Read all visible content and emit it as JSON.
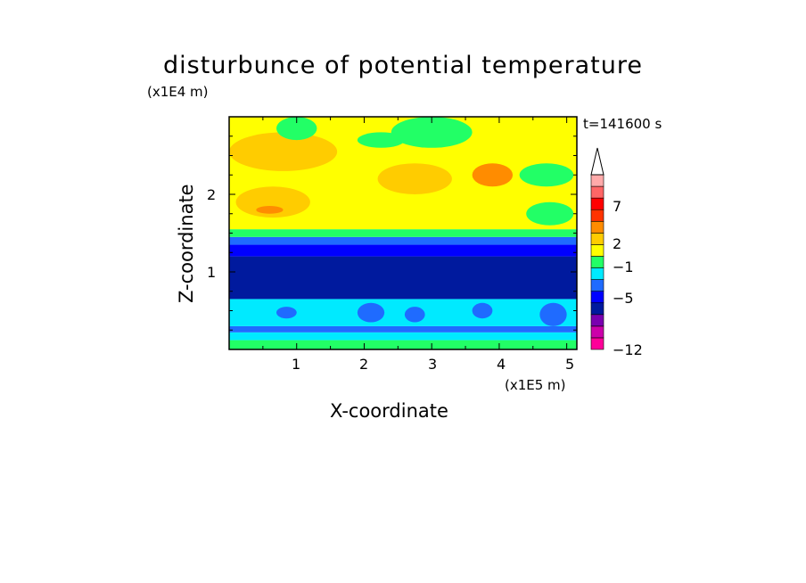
{
  "chart_data": {
    "type": "heatmap",
    "title": "disturbunce of potential temperature",
    "xlabel": "X-coordinate",
    "ylabel": "Z-coordinate",
    "x_scale_note": "(x1E5 m)",
    "y_scale_note": "(x1E4 m)",
    "time_label": "t=141600 s",
    "xlim": [
      0,
      5.15
    ],
    "ylim": [
      0,
      3.0
    ],
    "x_ticks": [
      "1",
      "2",
      "3",
      "4",
      "5"
    ],
    "y_ticks": [
      "1",
      "2"
    ],
    "colorbar": {
      "tick_labels": [
        "7",
        "2",
        "−1",
        "−5",
        "−12"
      ],
      "colors": [
        "#ff0099",
        "#cc00aa",
        "#7a00b0",
        "#001a9e",
        "#0000ff",
        "#1f6bff",
        "#00eaff",
        "#22ff66",
        "#ffff00",
        "#ffcc00",
        "#ff8c00",
        "#ff3300",
        "#ff0000",
        "#ff6666",
        "#ffaaaa"
      ],
      "extend_max": true
    },
    "layers": [
      {
        "z_min": 0.0,
        "z_max": 0.12,
        "level": "-1 to 1",
        "color": "#22ff66"
      },
      {
        "z_min": 0.12,
        "z_max": 0.22,
        "level": "-3 to -1",
        "color": "#00eaff"
      },
      {
        "z_min": 0.22,
        "z_max": 0.3,
        "level": "-4 to -3",
        "color": "#1f6bff"
      },
      {
        "z_min": 0.3,
        "z_max": 0.65,
        "level": "-3 to -1",
        "color": "#00eaff"
      },
      {
        "z_min": 0.65,
        "z_max": 1.2,
        "level": "-6 to -5",
        "color": "#001a9e"
      },
      {
        "z_min": 1.2,
        "z_max": 1.35,
        "level": "-5 to -4",
        "color": "#0000ff"
      },
      {
        "z_min": 1.35,
        "z_max": 1.45,
        "level": "-4 to -3",
        "color": "#1f6bff"
      },
      {
        "z_min": 1.45,
        "z_max": 1.55,
        "level": "-1 to 1",
        "color": "#22ff66"
      },
      {
        "z_min": 1.55,
        "z_max": 3.0,
        "level": "1 to 2",
        "color": "#ffff00"
      }
    ],
    "features": [
      {
        "desc": "warm patch",
        "x": [
          0.1,
          1.2
        ],
        "z": [
          1.7,
          2.1
        ],
        "color": "#ffcc00"
      },
      {
        "desc": "warm core",
        "x": [
          0.4,
          0.8
        ],
        "z": [
          1.75,
          1.85
        ],
        "color": "#ff8c00"
      },
      {
        "desc": "warm patch",
        "x": [
          2.2,
          3.3
        ],
        "z": [
          2.0,
          2.4
        ],
        "color": "#ffcc00"
      },
      {
        "desc": "warm patch",
        "x": [
          0.0,
          1.6
        ],
        "z": [
          2.3,
          2.8
        ],
        "color": "#ffcc00"
      },
      {
        "desc": "warm patch",
        "x": [
          3.6,
          4.2
        ],
        "z": [
          2.1,
          2.4
        ],
        "color": "#ff8c00"
      },
      {
        "desc": "cool patch",
        "x": [
          4.3,
          5.1
        ],
        "z": [
          2.1,
          2.4
        ],
        "color": "#22ff66"
      },
      {
        "desc": "cool patch",
        "x": [
          2.4,
          3.6
        ],
        "z": [
          2.6,
          3.0
        ],
        "color": "#22ff66"
      },
      {
        "desc": "cool patch",
        "x": [
          0.7,
          1.3
        ],
        "z": [
          2.7,
          3.0
        ],
        "color": "#22ff66"
      },
      {
        "desc": "cool patch",
        "x": [
          1.9,
          2.6
        ],
        "z": [
          2.6,
          2.8
        ],
        "color": "#22ff66"
      },
      {
        "desc": "cool patch",
        "x": [
          4.4,
          5.1
        ],
        "z": [
          1.6,
          1.9
        ],
        "color": "#22ff66"
      },
      {
        "desc": "cold cell",
        "x": [
          0.7,
          1.0
        ],
        "z": [
          0.4,
          0.55
        ],
        "color": "#1f6bff"
      },
      {
        "desc": "cold cell",
        "x": [
          1.9,
          2.3
        ],
        "z": [
          0.35,
          0.6
        ],
        "color": "#1f6bff"
      },
      {
        "desc": "cold cell",
        "x": [
          2.6,
          2.9
        ],
        "z": [
          0.35,
          0.55
        ],
        "color": "#1f6bff"
      },
      {
        "desc": "cold cell",
        "x": [
          3.6,
          3.9
        ],
        "z": [
          0.4,
          0.6
        ],
        "color": "#1f6bff"
      },
      {
        "desc": "cold cell",
        "x": [
          4.6,
          5.0
        ],
        "z": [
          0.3,
          0.6
        ],
        "color": "#1f6bff"
      }
    ]
  }
}
